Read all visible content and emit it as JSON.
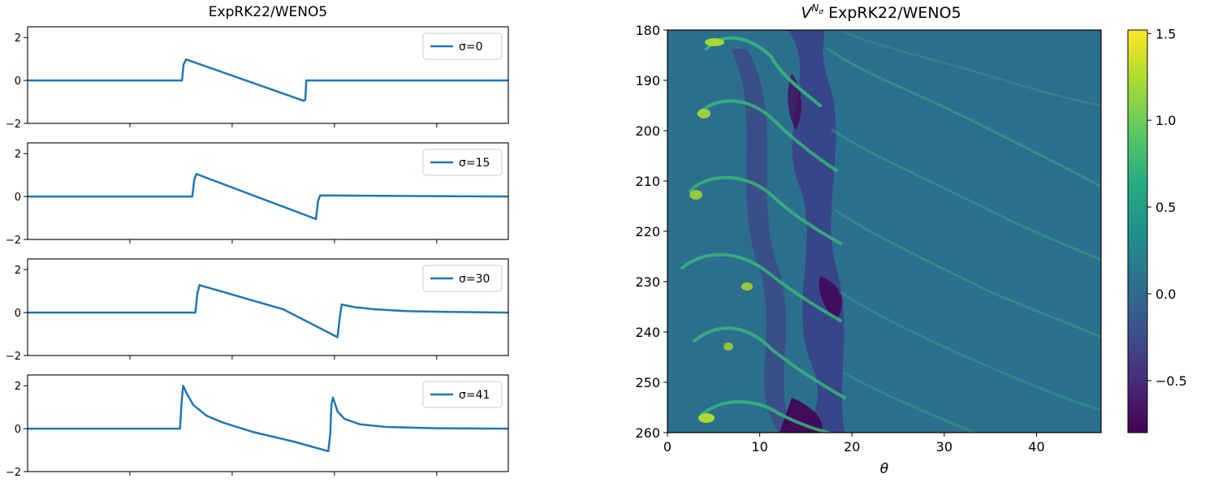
{
  "chart_data": [
    {
      "type": "line",
      "title": "ExpRK22/WENO5",
      "ylim": [
        -2,
        2.5
      ],
      "yticks": [
        -2,
        0,
        2
      ],
      "xlim": [
        0,
        47
      ],
      "grid": false,
      "legend_position": "top-right",
      "panels": [
        {
          "legend": "σ=0",
          "color": "#1f77b4",
          "points": [
            [
              0,
              0
            ],
            [
              15.1,
              0
            ],
            [
              15.25,
              0.75
            ],
            [
              15.5,
              0.98
            ],
            [
              27,
              -0.95
            ],
            [
              27.15,
              -0.9
            ],
            [
              27.25,
              0.0
            ],
            [
              47,
              0
            ]
          ]
        },
        {
          "legend": "σ=15",
          "color": "#1f77b4",
          "points": [
            [
              0,
              0
            ],
            [
              16.1,
              0
            ],
            [
              16.3,
              0.8
            ],
            [
              16.5,
              1.05
            ],
            [
              28.2,
              -1.05
            ],
            [
              28.4,
              -0.2
            ],
            [
              28.6,
              0.05
            ],
            [
              47,
              0.0
            ]
          ]
        },
        {
          "legend": "σ=30",
          "color": "#1f77b4",
          "points": [
            [
              0,
              0
            ],
            [
              16.4,
              0
            ],
            [
              16.6,
              0.9
            ],
            [
              16.8,
              1.28
            ],
            [
              21,
              0.7
            ],
            [
              25,
              0.15
            ],
            [
              30.3,
              -1.15
            ],
            [
              30.5,
              -0.3
            ],
            [
              30.7,
              0.38
            ],
            [
              32,
              0.25
            ],
            [
              34,
              0.15
            ],
            [
              37,
              0.07
            ],
            [
              41,
              0.03
            ],
            [
              47,
              0.0
            ]
          ]
        },
        {
          "legend": "σ=41",
          "color": "#1f77b4",
          "points": [
            [
              0,
              0
            ],
            [
              14.9,
              0
            ],
            [
              15.05,
              1.2
            ],
            [
              15.2,
              2.0
            ],
            [
              15.6,
              1.6
            ],
            [
              16.2,
              1.1
            ],
            [
              17.5,
              0.6
            ],
            [
              19,
              0.3
            ],
            [
              22,
              -0.15
            ],
            [
              26,
              -0.6
            ],
            [
              29.4,
              -1.05
            ],
            [
              29.6,
              -0.2
            ],
            [
              29.7,
              1.1
            ],
            [
              29.85,
              1.45
            ],
            [
              30.3,
              0.8
            ],
            [
              31,
              0.45
            ],
            [
              32.5,
              0.2
            ],
            [
              35,
              0.08
            ],
            [
              40,
              0.02
            ],
            [
              47,
              0.0
            ]
          ]
        }
      ]
    },
    {
      "type": "heatmap",
      "title_base": "V",
      "title_superscript": "N",
      "title_subscript": "σ",
      "title_rest": " ExpRK22/WENO5",
      "xlabel": "θ",
      "xlim": [
        0,
        47
      ],
      "xticks": [
        0,
        10,
        20,
        30,
        40
      ],
      "ylim": [
        180,
        260
      ],
      "yticks": [
        180,
        190,
        200,
        210,
        220,
        230,
        240,
        250,
        260
      ],
      "y_inverted": true,
      "colormap": "viridis",
      "colorbar": {
        "min": -0.8,
        "max": 1.52,
        "ticks": [
          -0.5,
          0.0,
          0.5,
          1.0,
          1.5
        ],
        "tick_labels": [
          "−0.5",
          "0.0",
          "0.5",
          "1.0",
          "1.5"
        ]
      },
      "background_value": 0.0
    }
  ]
}
